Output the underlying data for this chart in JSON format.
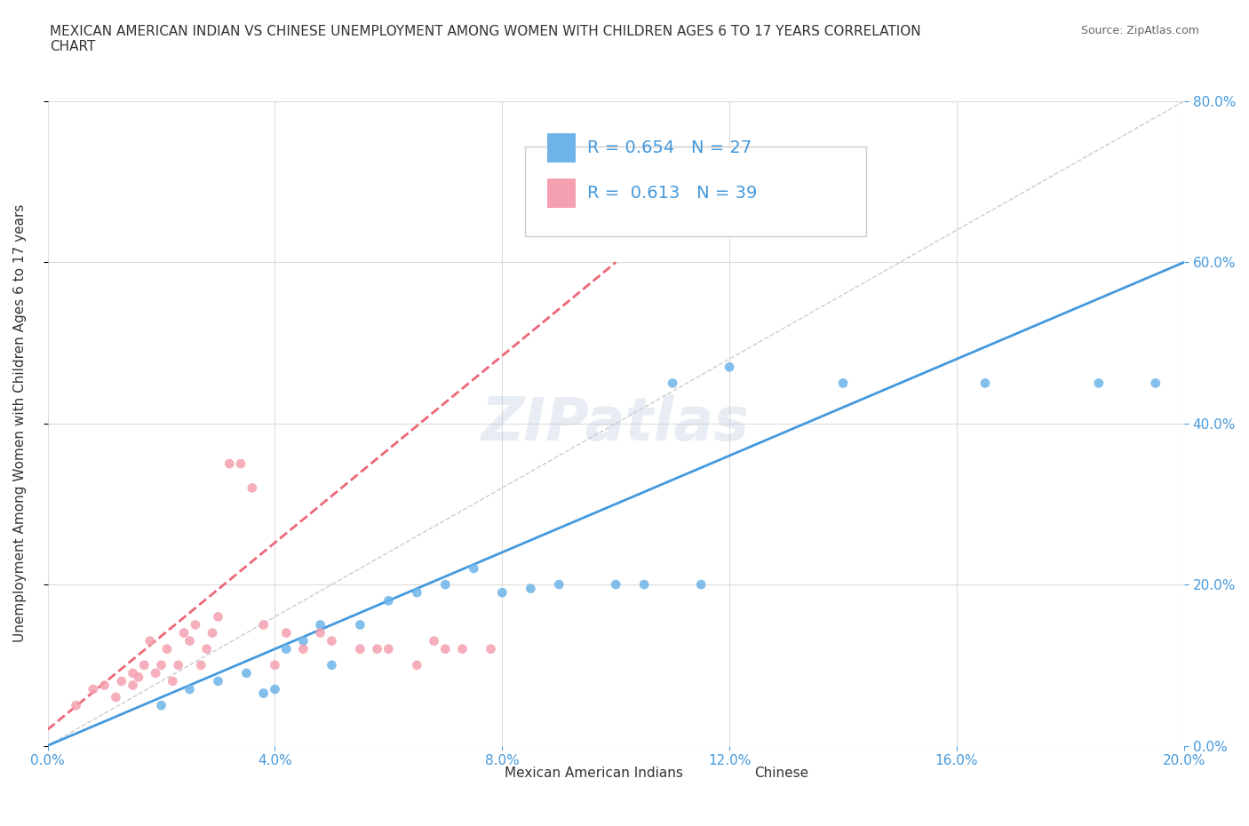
{
  "title": "MEXICAN AMERICAN INDIAN VS CHINESE UNEMPLOYMENT AMONG WOMEN WITH CHILDREN AGES 6 TO 17 YEARS CORRELATION\nCHART",
  "source": "Source: ZipAtlas.com",
  "xlabel": "",
  "ylabel": "Unemployment Among Women with Children Ages 6 to 17 years",
  "xlim": [
    0.0,
    0.2
  ],
  "ylim": [
    0.0,
    0.8
  ],
  "xticks": [
    0.0,
    0.04,
    0.08,
    0.12,
    0.16,
    0.2
  ],
  "yticks": [
    0.0,
    0.2,
    0.4,
    0.6,
    0.8
  ],
  "xticklabels": [
    "0.0%",
    "4.0%",
    "8.0%",
    "12.0%",
    "16.0%",
    "20.0%"
  ],
  "yticklabels": [
    "0.0%",
    "20.0%",
    "40.0%",
    "60.0%",
    "80.0%"
  ],
  "blue_scatter_x": [
    0.02,
    0.025,
    0.03,
    0.035,
    0.038,
    0.04,
    0.042,
    0.045,
    0.048,
    0.05,
    0.055,
    0.06,
    0.065,
    0.07,
    0.075,
    0.08,
    0.085,
    0.09,
    0.1,
    0.105,
    0.11,
    0.115,
    0.12,
    0.14,
    0.165,
    0.185,
    0.195
  ],
  "blue_scatter_y": [
    0.05,
    0.07,
    0.08,
    0.09,
    0.065,
    0.07,
    0.12,
    0.13,
    0.15,
    0.1,
    0.15,
    0.18,
    0.19,
    0.2,
    0.22,
    0.19,
    0.195,
    0.2,
    0.2,
    0.2,
    0.45,
    0.2,
    0.47,
    0.45,
    0.45,
    0.45,
    0.45
  ],
  "pink_scatter_x": [
    0.005,
    0.008,
    0.01,
    0.012,
    0.013,
    0.015,
    0.015,
    0.016,
    0.017,
    0.018,
    0.019,
    0.02,
    0.021,
    0.022,
    0.023,
    0.024,
    0.025,
    0.026,
    0.027,
    0.028,
    0.029,
    0.03,
    0.032,
    0.034,
    0.036,
    0.038,
    0.04,
    0.042,
    0.045,
    0.048,
    0.05,
    0.055,
    0.058,
    0.06,
    0.065,
    0.068,
    0.07,
    0.073,
    0.078
  ],
  "pink_scatter_y": [
    0.05,
    0.07,
    0.075,
    0.06,
    0.08,
    0.075,
    0.09,
    0.085,
    0.1,
    0.13,
    0.09,
    0.1,
    0.12,
    0.08,
    0.1,
    0.14,
    0.13,
    0.15,
    0.1,
    0.12,
    0.14,
    0.16,
    0.35,
    0.35,
    0.32,
    0.15,
    0.1,
    0.14,
    0.12,
    0.14,
    0.13,
    0.12,
    0.12,
    0.12,
    0.1,
    0.13,
    0.12,
    0.12,
    0.12
  ],
  "blue_line_x": [
    0.0,
    0.2
  ],
  "blue_line_y": [
    0.0,
    0.6
  ],
  "pink_line_x": [
    0.0,
    0.1
  ],
  "pink_line_y": [
    0.02,
    0.6
  ],
  "blue_color": "#6EB4E8",
  "pink_color": "#F4A0B0",
  "blue_line_color": "#4499DD",
  "pink_line_color": "#EE6677",
  "legend1_R": "0.654",
  "legend1_N": "27",
  "legend2_R": "0.613",
  "legend2_N": "39",
  "R_N_color": "#4499DD",
  "watermark": "ZIPatlas",
  "background_color": "#ffffff",
  "grid_color": "#DDDDDD"
}
